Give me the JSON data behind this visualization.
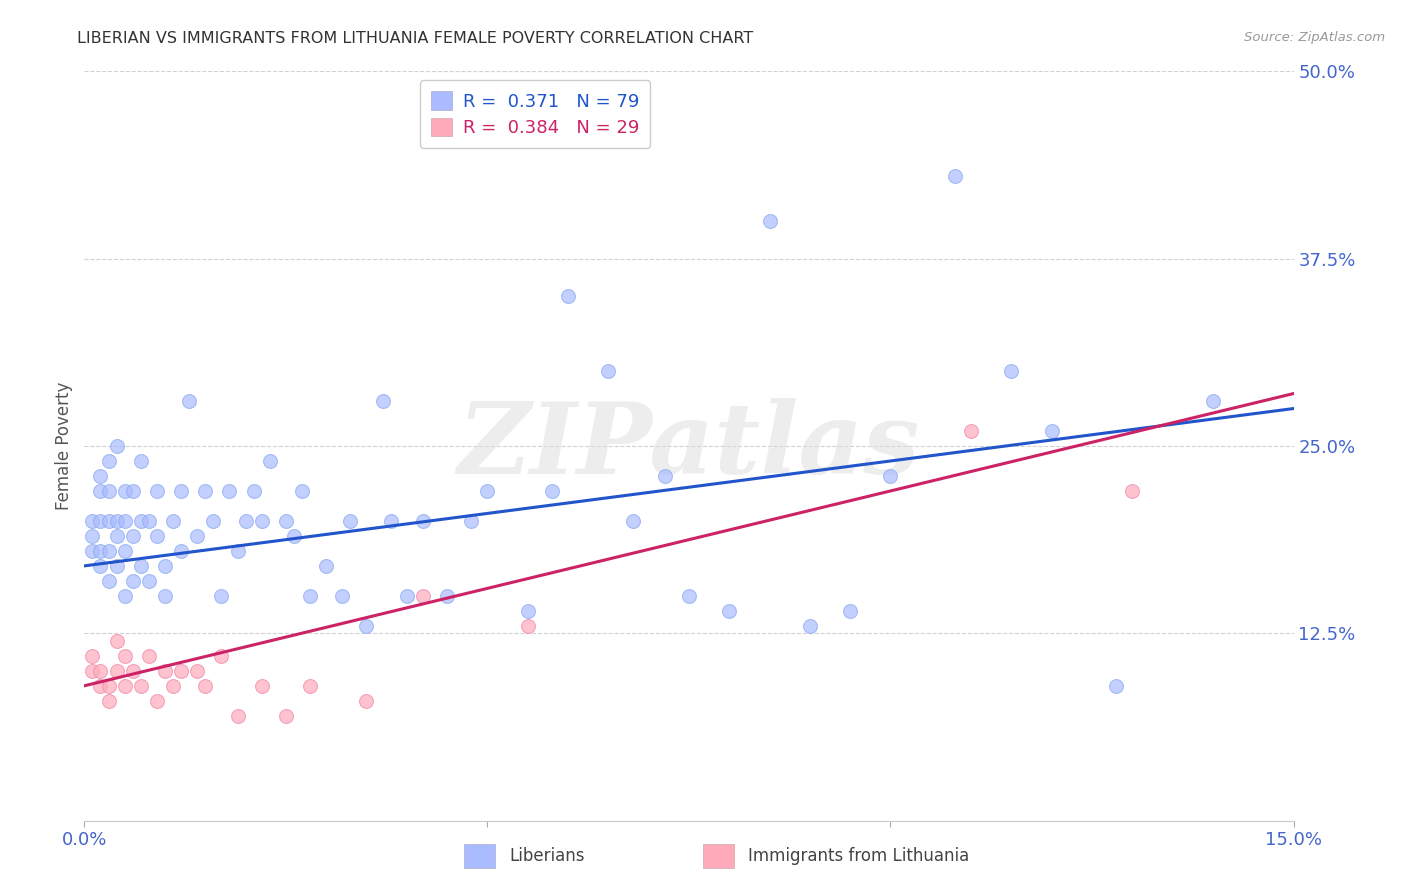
{
  "title": "LIBERIAN VS IMMIGRANTS FROM LITHUANIA FEMALE POVERTY CORRELATION CHART",
  "source": "Source: ZipAtlas.com",
  "ylabel": "Female Poverty",
  "watermark": "ZIPatlas",
  "xlim": [
    0.0,
    0.15
  ],
  "ylim": [
    0.0,
    0.5
  ],
  "xticks": [
    0.0,
    0.05,
    0.1,
    0.15
  ],
  "yticks": [
    0.0,
    0.125,
    0.25,
    0.375,
    0.5
  ],
  "ytick_labels": [
    "",
    "12.5%",
    "25.0%",
    "37.5%",
    "50.0%"
  ],
  "xtick_labels": [
    "0.0%",
    "",
    "",
    "15.0%"
  ],
  "blue_color": "#aabbff",
  "pink_color": "#ffaabb",
  "blue_line_color": "#2255cc",
  "pink_line_color": "#cc2266",
  "blue_R": "0.371",
  "blue_N": "79",
  "pink_R": "0.384",
  "pink_N": "29",
  "liberian_x": [
    0.001,
    0.001,
    0.001,
    0.002,
    0.002,
    0.002,
    0.002,
    0.002,
    0.003,
    0.003,
    0.003,
    0.003,
    0.003,
    0.004,
    0.004,
    0.004,
    0.004,
    0.005,
    0.005,
    0.005,
    0.005,
    0.006,
    0.006,
    0.006,
    0.007,
    0.007,
    0.007,
    0.008,
    0.008,
    0.009,
    0.009,
    0.01,
    0.01,
    0.011,
    0.012,
    0.012,
    0.013,
    0.014,
    0.015,
    0.016,
    0.017,
    0.018,
    0.019,
    0.02,
    0.021,
    0.022,
    0.023,
    0.025,
    0.026,
    0.027,
    0.028,
    0.03,
    0.032,
    0.033,
    0.035,
    0.037,
    0.038,
    0.04,
    0.042,
    0.045,
    0.048,
    0.05,
    0.055,
    0.058,
    0.06,
    0.065,
    0.068,
    0.072,
    0.075,
    0.08,
    0.085,
    0.09,
    0.095,
    0.1,
    0.108,
    0.115,
    0.12,
    0.128,
    0.14
  ],
  "liberian_y": [
    0.2,
    0.18,
    0.19,
    0.17,
    0.18,
    0.2,
    0.22,
    0.23,
    0.16,
    0.18,
    0.2,
    0.22,
    0.24,
    0.17,
    0.19,
    0.2,
    0.25,
    0.15,
    0.18,
    0.2,
    0.22,
    0.16,
    0.19,
    0.22,
    0.17,
    0.2,
    0.24,
    0.16,
    0.2,
    0.19,
    0.22,
    0.15,
    0.17,
    0.2,
    0.18,
    0.22,
    0.28,
    0.19,
    0.22,
    0.2,
    0.15,
    0.22,
    0.18,
    0.2,
    0.22,
    0.2,
    0.24,
    0.2,
    0.19,
    0.22,
    0.15,
    0.17,
    0.15,
    0.2,
    0.13,
    0.28,
    0.2,
    0.15,
    0.2,
    0.15,
    0.2,
    0.22,
    0.14,
    0.22,
    0.35,
    0.3,
    0.2,
    0.23,
    0.15,
    0.14,
    0.4,
    0.13,
    0.14,
    0.23,
    0.43,
    0.3,
    0.26,
    0.09,
    0.28
  ],
  "lithuania_x": [
    0.001,
    0.001,
    0.002,
    0.002,
    0.003,
    0.003,
    0.004,
    0.004,
    0.005,
    0.005,
    0.006,
    0.007,
    0.008,
    0.009,
    0.01,
    0.011,
    0.012,
    0.014,
    0.015,
    0.017,
    0.019,
    0.022,
    0.025,
    0.028,
    0.035,
    0.042,
    0.055,
    0.11,
    0.13
  ],
  "lithuania_y": [
    0.1,
    0.11,
    0.09,
    0.1,
    0.08,
    0.09,
    0.1,
    0.12,
    0.09,
    0.11,
    0.1,
    0.09,
    0.11,
    0.08,
    0.1,
    0.09,
    0.1,
    0.1,
    0.09,
    0.11,
    0.07,
    0.09,
    0.07,
    0.09,
    0.08,
    0.15,
    0.13,
    0.26,
    0.22
  ],
  "background_color": "#ffffff",
  "grid_color": "#cccccc",
  "blue_intercept": 0.17,
  "blue_slope": 0.7,
  "pink_intercept": 0.09,
  "pink_slope": 1.3
}
